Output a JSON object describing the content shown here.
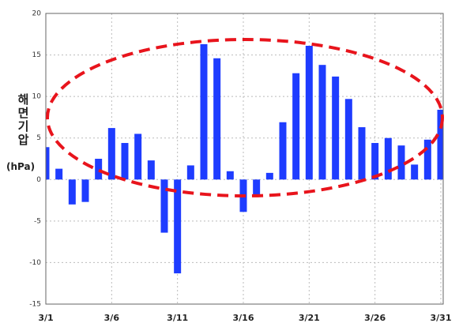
{
  "chart_data": {
    "type": "bar",
    "ylabel": "해면기압",
    "yunit": "(hPa)",
    "categories": [
      "3/1",
      null,
      null,
      null,
      null,
      "3/6",
      null,
      null,
      null,
      null,
      "3/11",
      null,
      null,
      null,
      null,
      "3/16",
      null,
      null,
      null,
      null,
      "3/21",
      null,
      null,
      null,
      null,
      "3/26",
      null,
      null,
      null,
      null,
      "3/31"
    ],
    "values": [
      3.9,
      1.3,
      -3.0,
      -2.7,
      2.5,
      6.2,
      4.4,
      5.5,
      2.3,
      -6.4,
      -11.3,
      1.7,
      16.3,
      14.6,
      1.0,
      -3.9,
      -2.1,
      0.8,
      6.9,
      12.8,
      16.1,
      13.8,
      12.4,
      9.7,
      6.3,
      4.4,
      5.0,
      4.1,
      1.8,
      4.8,
      8.4
    ],
    "color": "#1e3cff",
    "ylim": [
      -15,
      20
    ],
    "yticks": [
      -15,
      -10,
      -5,
      0,
      5,
      10,
      15,
      20
    ],
    "grid": true
  }
}
